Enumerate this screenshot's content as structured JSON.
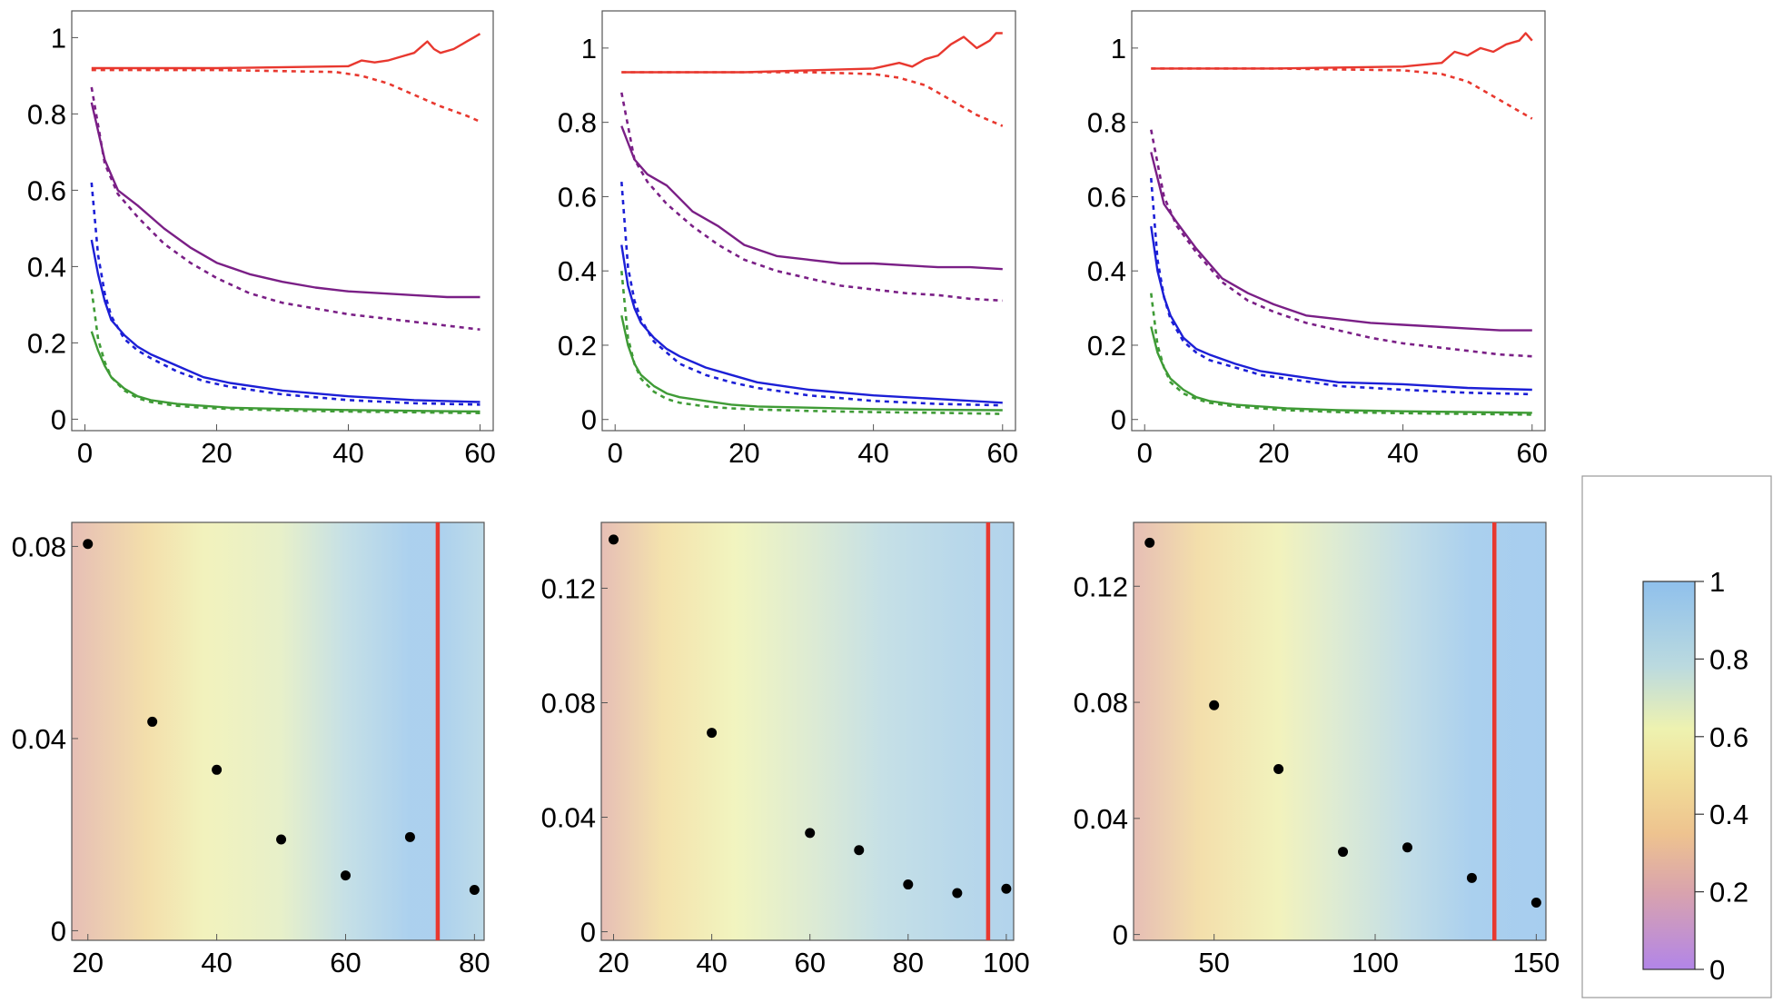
{
  "chart_data": [
    {
      "type": "line",
      "panel": "top-left",
      "x_ticks": [
        "0",
        "20",
        "40",
        "60"
      ],
      "y_ticks": [
        "0",
        "0.2",
        "0.4",
        "0.6",
        "0.8",
        "1"
      ],
      "xlim": [
        -2,
        62
      ],
      "ylim": [
        -0.03,
        1.07
      ],
      "series": [
        {
          "name": "red",
          "style": "solid",
          "color": "#e8382f",
          "x": [
            1,
            20,
            40,
            42,
            44,
            46,
            48,
            50,
            52,
            53,
            54,
            56,
            58,
            59,
            60
          ],
          "values": [
            0.92,
            0.92,
            0.925,
            0.94,
            0.935,
            0.94,
            0.95,
            0.96,
            0.99,
            0.97,
            0.96,
            0.97,
            0.99,
            1.0,
            1.01
          ]
        },
        {
          "name": "red",
          "style": "dashed",
          "color": "#e8382f",
          "x": [
            1,
            20,
            38,
            42,
            46,
            50,
            54,
            58,
            60
          ],
          "values": [
            0.915,
            0.915,
            0.91,
            0.9,
            0.88,
            0.85,
            0.82,
            0.795,
            0.78
          ]
        },
        {
          "name": "purple",
          "style": "solid",
          "color": "#7a1f86",
          "x": [
            1,
            3,
            5,
            8,
            12,
            16,
            20,
            25,
            30,
            35,
            40,
            45,
            50,
            55,
            60
          ],
          "values": [
            0.83,
            0.68,
            0.6,
            0.56,
            0.5,
            0.45,
            0.41,
            0.38,
            0.36,
            0.345,
            0.335,
            0.33,
            0.325,
            0.32,
            0.32
          ]
        },
        {
          "name": "purple",
          "style": "dashed",
          "color": "#7a1f86",
          "x": [
            1,
            3,
            5,
            8,
            12,
            16,
            20,
            25,
            30,
            35,
            40,
            45,
            50,
            55,
            60
          ],
          "values": [
            0.87,
            0.67,
            0.59,
            0.53,
            0.46,
            0.41,
            0.37,
            0.33,
            0.305,
            0.29,
            0.275,
            0.265,
            0.255,
            0.245,
            0.235
          ]
        },
        {
          "name": "blue",
          "style": "solid",
          "color": "#1c1fd6",
          "x": [
            1,
            2,
            3,
            4,
            6,
            8,
            10,
            14,
            18,
            22,
            26,
            30,
            40,
            50,
            60
          ],
          "values": [
            0.47,
            0.38,
            0.31,
            0.26,
            0.22,
            0.19,
            0.17,
            0.14,
            0.11,
            0.095,
            0.085,
            0.075,
            0.06,
            0.05,
            0.045
          ]
        },
        {
          "name": "blue",
          "style": "dashed",
          "color": "#1c1fd6",
          "x": [
            1,
            2,
            3,
            4,
            6,
            8,
            10,
            14,
            18,
            22,
            26,
            30,
            40,
            50,
            60
          ],
          "values": [
            0.62,
            0.43,
            0.33,
            0.27,
            0.21,
            0.18,
            0.16,
            0.125,
            0.1,
            0.085,
            0.075,
            0.065,
            0.05,
            0.042,
            0.038
          ]
        },
        {
          "name": "green",
          "style": "solid",
          "color": "#3f9b36",
          "x": [
            1,
            2,
            3,
            4,
            6,
            8,
            10,
            14,
            18,
            22,
            30,
            40,
            50,
            60
          ],
          "values": [
            0.23,
            0.18,
            0.14,
            0.11,
            0.08,
            0.06,
            0.05,
            0.04,
            0.035,
            0.03,
            0.027,
            0.024,
            0.022,
            0.02
          ]
        },
        {
          "name": "green",
          "style": "dashed",
          "color": "#3f9b36",
          "x": [
            1,
            2,
            3,
            4,
            6,
            8,
            10,
            14,
            18,
            22,
            30,
            40,
            50,
            60
          ],
          "values": [
            0.34,
            0.21,
            0.15,
            0.11,
            0.075,
            0.055,
            0.045,
            0.035,
            0.03,
            0.027,
            0.023,
            0.02,
            0.018,
            0.016
          ]
        }
      ]
    },
    {
      "type": "line",
      "panel": "top-middle",
      "x_ticks": [
        "0",
        "20",
        "40",
        "60"
      ],
      "y_ticks": [
        "0",
        "0.2",
        "0.4",
        "0.6",
        "0.8",
        "1"
      ],
      "xlim": [
        -2,
        62
      ],
      "ylim": [
        -0.03,
        1.1
      ],
      "series": [
        {
          "name": "red",
          "style": "solid",
          "color": "#e8382f",
          "x": [
            1,
            20,
            30,
            40,
            44,
            46,
            48,
            50,
            52,
            54,
            56,
            58,
            59,
            60
          ],
          "values": [
            0.935,
            0.935,
            0.94,
            0.945,
            0.96,
            0.95,
            0.97,
            0.98,
            1.01,
            1.03,
            1.0,
            1.02,
            1.04,
            1.04
          ]
        },
        {
          "name": "red",
          "style": "dashed",
          "color": "#e8382f",
          "x": [
            1,
            20,
            30,
            40,
            44,
            48,
            52,
            56,
            60
          ],
          "values": [
            0.935,
            0.935,
            0.935,
            0.93,
            0.92,
            0.9,
            0.86,
            0.82,
            0.79
          ]
        },
        {
          "name": "purple",
          "style": "solid",
          "color": "#7a1f86",
          "x": [
            1,
            3,
            5,
            8,
            12,
            16,
            20,
            25,
            30,
            35,
            40,
            45,
            50,
            55,
            60
          ],
          "values": [
            0.79,
            0.7,
            0.66,
            0.63,
            0.56,
            0.52,
            0.47,
            0.44,
            0.43,
            0.42,
            0.42,
            0.415,
            0.41,
            0.41,
            0.405
          ]
        },
        {
          "name": "purple",
          "style": "dashed",
          "color": "#7a1f86",
          "x": [
            1,
            3,
            5,
            8,
            12,
            16,
            20,
            25,
            30,
            35,
            40,
            45,
            50,
            55,
            60
          ],
          "values": [
            0.88,
            0.7,
            0.64,
            0.58,
            0.52,
            0.47,
            0.43,
            0.4,
            0.38,
            0.36,
            0.35,
            0.34,
            0.335,
            0.325,
            0.32
          ]
        },
        {
          "name": "blue",
          "style": "solid",
          "color": "#1c1fd6",
          "x": [
            1,
            2,
            3,
            4,
            6,
            8,
            10,
            14,
            18,
            22,
            26,
            30,
            40,
            50,
            60
          ],
          "values": [
            0.47,
            0.36,
            0.3,
            0.26,
            0.22,
            0.19,
            0.17,
            0.14,
            0.12,
            0.1,
            0.09,
            0.08,
            0.065,
            0.055,
            0.045
          ]
        },
        {
          "name": "blue",
          "style": "dashed",
          "color": "#1c1fd6",
          "x": [
            1,
            2,
            3,
            4,
            6,
            8,
            10,
            14,
            18,
            22,
            26,
            30,
            40,
            50,
            60
          ],
          "values": [
            0.64,
            0.41,
            0.32,
            0.27,
            0.21,
            0.18,
            0.15,
            0.12,
            0.1,
            0.085,
            0.075,
            0.065,
            0.05,
            0.042,
            0.038
          ]
        },
        {
          "name": "green",
          "style": "solid",
          "color": "#3f9b36",
          "x": [
            1,
            2,
            3,
            4,
            6,
            8,
            10,
            14,
            18,
            22,
            30,
            40,
            50,
            60
          ],
          "values": [
            0.28,
            0.2,
            0.15,
            0.12,
            0.09,
            0.07,
            0.06,
            0.05,
            0.04,
            0.035,
            0.032,
            0.028,
            0.026,
            0.025
          ]
        },
        {
          "name": "green",
          "style": "dashed",
          "color": "#3f9b36",
          "x": [
            1,
            2,
            3,
            4,
            6,
            8,
            10,
            14,
            18,
            22,
            30,
            40,
            50,
            60
          ],
          "values": [
            0.4,
            0.22,
            0.15,
            0.11,
            0.075,
            0.055,
            0.045,
            0.035,
            0.03,
            0.027,
            0.023,
            0.02,
            0.018,
            0.015
          ]
        }
      ]
    },
    {
      "type": "line",
      "panel": "top-right",
      "x_ticks": [
        "0",
        "20",
        "40",
        "60"
      ],
      "y_ticks": [
        "0",
        "0.2",
        "0.4",
        "0.6",
        "0.8",
        "1"
      ],
      "xlim": [
        -2,
        62
      ],
      "ylim": [
        -0.03,
        1.1
      ],
      "series": [
        {
          "name": "red",
          "style": "solid",
          "color": "#e8382f",
          "x": [
            1,
            20,
            40,
            46,
            48,
            50,
            52,
            54,
            56,
            58,
            59,
            60
          ],
          "values": [
            0.945,
            0.945,
            0.95,
            0.96,
            0.99,
            0.98,
            1.0,
            0.99,
            1.01,
            1.02,
            1.04,
            1.02
          ]
        },
        {
          "name": "red",
          "style": "dashed",
          "color": "#e8382f",
          "x": [
            1,
            20,
            40,
            46,
            50,
            54,
            58,
            60
          ],
          "values": [
            0.945,
            0.945,
            0.94,
            0.93,
            0.91,
            0.87,
            0.83,
            0.81
          ]
        },
        {
          "name": "purple",
          "style": "solid",
          "color": "#7a1f86",
          "x": [
            1,
            3,
            5,
            8,
            12,
            16,
            20,
            25,
            30,
            35,
            40,
            45,
            50,
            55,
            60
          ],
          "values": [
            0.72,
            0.58,
            0.53,
            0.46,
            0.38,
            0.34,
            0.31,
            0.28,
            0.27,
            0.26,
            0.255,
            0.25,
            0.245,
            0.24,
            0.24
          ]
        },
        {
          "name": "purple",
          "style": "dashed",
          "color": "#7a1f86",
          "x": [
            1,
            3,
            5,
            8,
            12,
            16,
            20,
            25,
            30,
            35,
            40,
            45,
            50,
            55,
            60
          ],
          "values": [
            0.78,
            0.6,
            0.52,
            0.45,
            0.37,
            0.32,
            0.29,
            0.26,
            0.24,
            0.22,
            0.205,
            0.195,
            0.185,
            0.175,
            0.17
          ]
        },
        {
          "name": "blue",
          "style": "solid",
          "color": "#1c1fd6",
          "x": [
            1,
            2,
            3,
            4,
            6,
            8,
            10,
            14,
            18,
            22,
            26,
            30,
            40,
            50,
            60
          ],
          "values": [
            0.52,
            0.4,
            0.33,
            0.28,
            0.22,
            0.19,
            0.175,
            0.15,
            0.13,
            0.12,
            0.11,
            0.1,
            0.095,
            0.085,
            0.08
          ]
        },
        {
          "name": "blue",
          "style": "dashed",
          "color": "#1c1fd6",
          "x": [
            1,
            2,
            3,
            4,
            6,
            8,
            10,
            14,
            18,
            22,
            26,
            30,
            40,
            50,
            60
          ],
          "values": [
            0.65,
            0.43,
            0.33,
            0.27,
            0.21,
            0.18,
            0.16,
            0.14,
            0.12,
            0.11,
            0.1,
            0.09,
            0.08,
            0.072,
            0.068
          ]
        },
        {
          "name": "green",
          "style": "solid",
          "color": "#3f9b36",
          "x": [
            1,
            2,
            3,
            4,
            6,
            8,
            10,
            14,
            18,
            22,
            30,
            40,
            50,
            60
          ],
          "values": [
            0.25,
            0.18,
            0.14,
            0.11,
            0.08,
            0.06,
            0.05,
            0.04,
            0.035,
            0.03,
            0.025,
            0.022,
            0.02,
            0.018
          ]
        },
        {
          "name": "green",
          "style": "dashed",
          "color": "#3f9b36",
          "x": [
            1,
            2,
            3,
            4,
            6,
            8,
            10,
            14,
            18,
            22,
            30,
            40,
            50,
            60
          ],
          "values": [
            0.34,
            0.2,
            0.14,
            0.1,
            0.07,
            0.055,
            0.045,
            0.035,
            0.03,
            0.025,
            0.02,
            0.017,
            0.015,
            0.013
          ]
        }
      ]
    },
    {
      "type": "scatter",
      "panel": "bottom-left",
      "x_ticks": [
        "20",
        "40",
        "60",
        "80"
      ],
      "y_ticks": [
        "0",
        "0.04",
        "0.08"
      ],
      "xlim": [
        17.5,
        81.5
      ],
      "ylim": [
        -0.002,
        0.085
      ],
      "x": [
        20,
        30,
        40,
        50,
        60,
        70,
        80
      ],
      "values": [
        0.0805,
        0.0435,
        0.0335,
        0.019,
        0.0115,
        0.0195,
        0.0085
      ],
      "threshold_x": 74.3,
      "threshold_color": "#e8382f",
      "background_xs": [
        17.5,
        29,
        38,
        50,
        60,
        70,
        74.3,
        81.5
      ],
      "background_values": [
        0.25,
        0.45,
        0.6,
        0.66,
        0.8,
        0.96,
        0.96,
        0.85
      ]
    },
    {
      "type": "scatter",
      "panel": "bottom-middle",
      "x_ticks": [
        "20",
        "40",
        "60",
        "80",
        "100"
      ],
      "y_ticks": [
        "0",
        "0.04",
        "0.08",
        "0.12"
      ],
      "xlim": [
        17.5,
        101.5
      ],
      "ylim": [
        -0.003,
        0.143
      ],
      "x": [
        20,
        40,
        60,
        70,
        80,
        90,
        100
      ],
      "values": [
        0.137,
        0.0695,
        0.0345,
        0.0285,
        0.0165,
        0.0135,
        0.015
      ],
      "threshold_x": 96.3,
      "threshold_color": "#e8382f",
      "background_xs": [
        17.5,
        30,
        45,
        60,
        75,
        90,
        101.5
      ],
      "background_values": [
        0.25,
        0.48,
        0.62,
        0.7,
        0.8,
        0.88,
        0.92
      ]
    },
    {
      "type": "scatter",
      "panel": "bottom-right",
      "x_ticks": [
        "50",
        "100",
        "150"
      ],
      "y_ticks": [
        "0",
        "0.04",
        "0.08",
        "0.12"
      ],
      "xlim": [
        25,
        153
      ],
      "ylim": [
        -0.002,
        0.142
      ],
      "x": [
        30,
        50,
        70,
        90,
        110,
        130,
        150
      ],
      "values": [
        0.135,
        0.079,
        0.057,
        0.0285,
        0.03,
        0.0195,
        0.011
      ],
      "threshold_x": 137,
      "threshold_color": "#e8382f",
      "background_xs": [
        25,
        45,
        70,
        88,
        110,
        130,
        153
      ],
      "background_values": [
        0.25,
        0.45,
        0.6,
        0.7,
        0.82,
        0.97,
        0.99
      ]
    }
  ],
  "colorbar": {
    "ticks": [
      "0",
      "0.2",
      "0.4",
      "0.6",
      "0.8",
      "1"
    ],
    "range": [
      0,
      1
    ],
    "stops": [
      {
        "value": 0.0,
        "color": "#b285e8"
      },
      {
        "value": 0.2,
        "color": "#d9a3ad"
      },
      {
        "value": 0.35,
        "color": "#eec38f"
      },
      {
        "value": 0.5,
        "color": "#f1df99"
      },
      {
        "value": 0.62,
        "color": "#eef2b0"
      },
      {
        "value": 0.78,
        "color": "#bbdadf"
      },
      {
        "value": 1.0,
        "color": "#8fc0ec"
      }
    ]
  }
}
